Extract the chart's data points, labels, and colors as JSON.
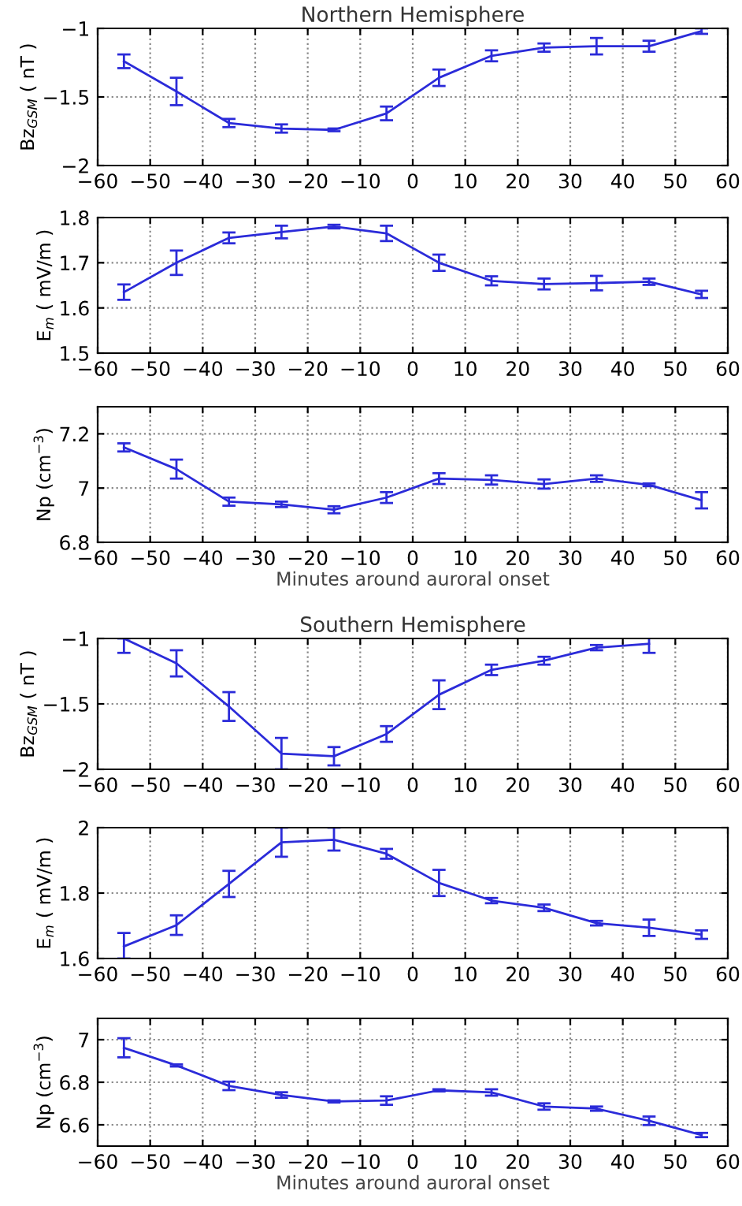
{
  "chart_data": [
    {
      "type": "line",
      "title": "Northern Hemisphere",
      "ylabel": "Bz$_{GSM}$ ( nT )",
      "x": [
        -55,
        -45,
        -35,
        -25,
        -15,
        -5,
        5,
        15,
        25,
        35,
        45,
        55
      ],
      "xlim": [
        -60,
        60
      ],
      "xticks": [
        -60,
        -50,
        -40,
        -30,
        -20,
        -10,
        0,
        10,
        20,
        30,
        40,
        50,
        60
      ],
      "ylim": [
        -2,
        -1
      ],
      "yticks": [
        -2,
        -1.5,
        -1
      ],
      "grid": true,
      "line_style": "solid",
      "marker": "none",
      "series": [
        {
          "color": "#2b2bd9",
          "values": [
            -1.24,
            -1.46,
            -1.69,
            -1.73,
            -1.74,
            -1.62,
            -1.36,
            -1.2,
            -1.14,
            -1.13,
            -1.13,
            -1.02
          ],
          "errors": [
            0.05,
            0.1,
            0.03,
            0.03,
            0.01,
            0.05,
            0.06,
            0.04,
            0.03,
            0.06,
            0.04,
            0.02
          ]
        }
      ]
    },
    {
      "type": "line",
      "ylabel": "E$_{m}$ ( mV/m )",
      "x": [
        -55,
        -45,
        -35,
        -25,
        -15,
        -5,
        5,
        15,
        25,
        35,
        45,
        55
      ],
      "xlim": [
        -60,
        60
      ],
      "xticks": [
        -60,
        -50,
        -40,
        -30,
        -20,
        -10,
        0,
        10,
        20,
        30,
        40,
        50,
        60
      ],
      "ylim": [
        1.5,
        1.8
      ],
      "yticks": [
        1.5,
        1.6,
        1.7,
        1.8
      ],
      "grid": true,
      "line_style": "solid",
      "marker": "none",
      "series": [
        {
          "color": "#2b2bd9",
          "values": [
            1.635,
            1.7,
            1.755,
            1.768,
            1.78,
            1.765,
            1.7,
            1.66,
            1.653,
            1.655,
            1.658,
            1.63
          ],
          "errors": [
            0.017,
            0.027,
            0.012,
            0.014,
            0.004,
            0.017,
            0.018,
            0.01,
            0.012,
            0.016,
            0.007,
            0.008
          ]
        }
      ]
    },
    {
      "type": "line",
      "xlabel": "Minutes around auroral onset",
      "ylabel": "Np (cm$^{−3}$)",
      "x": [
        -55,
        -45,
        -35,
        -25,
        -15,
        -5,
        5,
        15,
        25,
        35,
        45,
        55
      ],
      "xlim": [
        -60,
        60
      ],
      "xticks": [
        -60,
        -50,
        -40,
        -30,
        -20,
        -10,
        0,
        10,
        20,
        30,
        40,
        50,
        60
      ],
      "ylim": [
        6.8,
        7.3
      ],
      "yticks": [
        6.8,
        7,
        7.2
      ],
      "grid": true,
      "line_style": "solid",
      "marker": "none",
      "series": [
        {
          "color": "#2b2bd9",
          "values": [
            7.15,
            7.07,
            6.95,
            6.94,
            6.92,
            6.965,
            7.035,
            7.03,
            7.015,
            7.035,
            7.012,
            6.955
          ],
          "errors": [
            0.015,
            0.035,
            0.015,
            0.01,
            0.013,
            0.02,
            0.02,
            0.017,
            0.017,
            0.012,
            0.005,
            0.03
          ]
        }
      ]
    },
    {
      "type": "line",
      "title": "Southern Hemisphere",
      "ylabel": "Bz$_{GSM}$ ( nT )",
      "xlim": [
        -60,
        60
      ],
      "xticks": [
        -60,
        -50,
        -40,
        -30,
        -20,
        -10,
        0,
        10,
        20,
        30,
        40,
        50,
        60
      ],
      "ylim": [
        -2,
        -1
      ],
      "yticks": [
        -2,
        -1.5,
        -1
      ],
      "grid": true,
      "line_style": "solid",
      "marker": "none",
      "series": [
        {
          "color": "#2b2bd9",
          "x": [
            -55,
            -45,
            -35,
            -25,
            -15,
            -5,
            5,
            15,
            25,
            35,
            45
          ],
          "values": [
            -1.0,
            -1.19,
            -1.52,
            -1.88,
            -1.9,
            -1.73,
            -1.43,
            -1.24,
            -1.17,
            -1.07,
            -1.04
          ],
          "errors": [
            [
              -1.11,
              -1.0
            ],
            0.1,
            0.11,
            [
              -2.0,
              -1.76
            ],
            0.07,
            0.06,
            0.11,
            0.04,
            0.03,
            0.02,
            0.07
          ]
        }
      ]
    },
    {
      "type": "line",
      "ylabel": "E$_{m}$ ( mV/m )",
      "x": [
        -55,
        -45,
        -35,
        -25,
        -15,
        -5,
        5,
        15,
        25,
        35,
        45,
        55
      ],
      "xlim": [
        -60,
        60
      ],
      "xticks": [
        -60,
        -50,
        -40,
        -30,
        -20,
        -10,
        0,
        10,
        20,
        30,
        40,
        50,
        60
      ],
      "ylim": [
        1.6,
        2
      ],
      "yticks": [
        1.6,
        1.8,
        2
      ],
      "grid": true,
      "line_style": "solid",
      "marker": "none",
      "series": [
        {
          "color": "#2b2bd9",
          "values": [
            1.637,
            1.702,
            1.828,
            1.955,
            1.963,
            1.92,
            1.831,
            1.777,
            1.755,
            1.708,
            1.694,
            1.673
          ],
          "errors": [
            [
              1.6,
              1.678
            ],
            0.03,
            0.04,
            [
              1.911,
              2.0
            ],
            [
              1.93,
              2.0
            ],
            0.015,
            0.04,
            0.008,
            0.01,
            0.007,
            0.025,
            0.013
          ]
        }
      ]
    },
    {
      "type": "line",
      "xlabel": "Minutes around auroral onset",
      "ylabel": "Np (cm$^{−3}$)",
      "x": [
        -55,
        -45,
        -35,
        -25,
        -15,
        -5,
        5,
        15,
        25,
        35,
        45,
        55
      ],
      "xlim": [
        -60,
        60
      ],
      "xticks": [
        -60,
        -50,
        -40,
        -30,
        -20,
        -10,
        0,
        10,
        20,
        30,
        40,
        50,
        60
      ],
      "ylim": [
        6.5,
        7.1
      ],
      "yticks": [
        6.6,
        6.8,
        7
      ],
      "grid": true,
      "line_style": "solid",
      "marker": "none",
      "series": [
        {
          "color": "#2b2bd9",
          "values": [
            6.962,
            6.879,
            6.783,
            6.74,
            6.71,
            6.714,
            6.762,
            6.752,
            6.686,
            6.676,
            6.619,
            6.552
          ],
          "errors": [
            0.045,
            0.005,
            0.02,
            0.013,
            0.005,
            0.02,
            0.005,
            0.015,
            0.015,
            0.01,
            0.02,
            0.01
          ]
        }
      ]
    }
  ]
}
